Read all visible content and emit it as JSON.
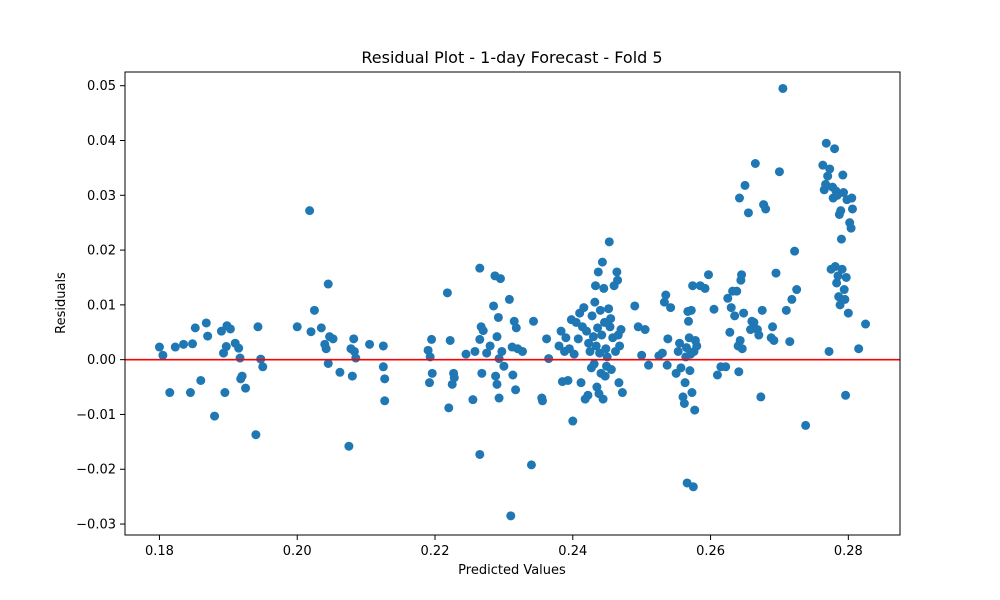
{
  "chart_data": {
    "type": "scatter",
    "title": "Residual Plot - 1-day Forecast - Fold 5",
    "xlabel": "Predicted Values",
    "ylabel": "Residuals",
    "xlim": [
      0.175,
      0.2875
    ],
    "ylim": [
      -0.032,
      0.0525
    ],
    "x_ticks": [
      0.18,
      0.2,
      0.22,
      0.24,
      0.26,
      0.28
    ],
    "x_tick_labels": [
      "0.18",
      "0.20",
      "0.22",
      "0.24",
      "0.26",
      "0.28"
    ],
    "y_ticks": [
      -0.03,
      -0.02,
      -0.01,
      0.0,
      0.01,
      0.02,
      0.03,
      0.04,
      0.05
    ],
    "y_tick_labels": [
      "−0.03",
      "−0.02",
      "−0.01",
      "0.00",
      "0.01",
      "0.02",
      "0.03",
      "0.04",
      "0.05"
    ],
    "grid": false,
    "reference_line": {
      "y": 0.0,
      "color": "#ff0000"
    },
    "marker_color": "#1f77b4",
    "points": [
      [
        0.18,
        0.0023
      ],
      [
        0.1805,
        0.0008
      ],
      [
        0.1815,
        -0.006
      ],
      [
        0.1823,
        0.0023
      ],
      [
        0.1835,
        0.0028
      ],
      [
        0.1845,
        -0.006
      ],
      [
        0.1848,
        0.0029
      ],
      [
        0.1852,
        0.0058
      ],
      [
        0.186,
        -0.0038
      ],
      [
        0.1868,
        0.0067
      ],
      [
        0.187,
        0.0043
      ],
      [
        0.188,
        -0.0103
      ],
      [
        0.189,
        0.0052
      ],
      [
        0.1893,
        0.0012
      ],
      [
        0.1895,
        -0.006
      ],
      [
        0.1897,
        0.0024
      ],
      [
        0.1898,
        0.0062
      ],
      [
        0.1903,
        0.0056
      ],
      [
        0.191,
        0.003
      ],
      [
        0.1915,
        0.0021
      ],
      [
        0.1917,
        0.0003
      ],
      [
        0.1918,
        -0.0035
      ],
      [
        0.192,
        -0.003
      ],
      [
        0.1925,
        -0.0052
      ],
      [
        0.194,
        -0.0137
      ],
      [
        0.1943,
        0.006
      ],
      [
        0.1947,
        0.0001
      ],
      [
        0.195,
        -0.0013
      ],
      [
        0.2,
        0.006
      ],
      [
        0.2018,
        0.0272
      ],
      [
        0.202,
        0.0051
      ],
      [
        0.2025,
        0.009
      ],
      [
        0.2035,
        0.0058
      ],
      [
        0.204,
        0.0028
      ],
      [
        0.2042,
        0.002
      ],
      [
        0.2045,
        0.0138
      ],
      [
        0.2045,
        -0.0007
      ],
      [
        0.2047,
        0.0042
      ],
      [
        0.2052,
        0.0038
      ],
      [
        0.2062,
        -0.0023
      ],
      [
        0.2075,
        -0.0158
      ],
      [
        0.2078,
        0.002
      ],
      [
        0.208,
        -0.003
      ],
      [
        0.2082,
        0.0038
      ],
      [
        0.2085,
        0.0003
      ],
      [
        0.2083,
        0.0015
      ],
      [
        0.2105,
        0.0028
      ],
      [
        0.2125,
        0.0025
      ],
      [
        0.2125,
        -0.0013
      ],
      [
        0.2127,
        -0.0035
      ],
      [
        0.2127,
        -0.0075
      ],
      [
        0.219,
        0.0017
      ],
      [
        0.2192,
        -0.0042
      ],
      [
        0.2195,
        0.0037
      ],
      [
        0.2196,
        -0.0025
      ],
      [
        0.2193,
        0.0005
      ],
      [
        0.2218,
        0.0122
      ],
      [
        0.222,
        -0.0088
      ],
      [
        0.2222,
        0.0035
      ],
      [
        0.2225,
        -0.0045
      ],
      [
        0.2227,
        -0.0025
      ],
      [
        0.2228,
        -0.0033
      ],
      [
        0.2245,
        0.001
      ],
      [
        0.2255,
        -0.0073
      ],
      [
        0.2258,
        0.0015
      ],
      [
        0.2265,
        0.0167
      ],
      [
        0.2265,
        -0.0173
      ],
      [
        0.2265,
        0.0037
      ],
      [
        0.2267,
        0.006
      ],
      [
        0.2268,
        -0.0025
      ],
      [
        0.227,
        0.0053
      ],
      [
        0.2275,
        0.0012
      ],
      [
        0.228,
        0.0025
      ],
      [
        0.2285,
        0.0098
      ],
      [
        0.2287,
        0.0153
      ],
      [
        0.2288,
        -0.003
      ],
      [
        0.229,
        -0.0045
      ],
      [
        0.229,
        0.0042
      ],
      [
        0.2292,
        0.0077
      ],
      [
        0.2293,
        -0.007
      ],
      [
        0.2293,
        0.0002
      ],
      [
        0.2295,
        0.0148
      ],
      [
        0.2297,
        0.0015
      ],
      [
        0.23,
        -0.0012
      ],
      [
        0.2308,
        0.011
      ],
      [
        0.231,
        -0.0285
      ],
      [
        0.2312,
        0.0023
      ],
      [
        0.2313,
        -0.0028
      ],
      [
        0.2315,
        0.007
      ],
      [
        0.2317,
        -0.0055
      ],
      [
        0.2318,
        0.0058
      ],
      [
        0.232,
        0.002
      ],
      [
        0.2327,
        0.0015
      ],
      [
        0.234,
        -0.0192
      ],
      [
        0.2343,
        0.007
      ],
      [
        0.2355,
        -0.007
      ],
      [
        0.2356,
        -0.0075
      ],
      [
        0.2362,
        0.0038
      ],
      [
        0.2365,
        0.0002
      ],
      [
        0.238,
        0.0025
      ],
      [
        0.2383,
        0.0052
      ],
      [
        0.2385,
        -0.004
      ],
      [
        0.2388,
        0.0015
      ],
      [
        0.239,
        0.004
      ],
      [
        0.2393,
        -0.0038
      ],
      [
        0.2395,
        0.002
      ],
      [
        0.2398,
        0.0073
      ],
      [
        0.24,
        -0.0112
      ],
      [
        0.2402,
        0.001
      ],
      [
        0.2405,
        0.0068
      ],
      [
        0.2408,
        0.0038
      ],
      [
        0.241,
        0.0085
      ],
      [
        0.2412,
        -0.0042
      ],
      [
        0.2414,
        0.006
      ],
      [
        0.2416,
        0.0095
      ],
      [
        0.2418,
        -0.0072
      ],
      [
        0.242,
        0.0052
      ],
      [
        0.2422,
        -0.0065
      ],
      [
        0.2423,
        0.003
      ],
      [
        0.2425,
        0.0015
      ],
      [
        0.2427,
        -0.0015
      ],
      [
        0.2428,
        0.008
      ],
      [
        0.243,
        0.0042
      ],
      [
        0.2431,
        -0.0008
      ],
      [
        0.2432,
        0.0105
      ],
      [
        0.2433,
        0.0135
      ],
      [
        0.2434,
        0.0025
      ],
      [
        0.2435,
        -0.005
      ],
      [
        0.2436,
        0.0058
      ],
      [
        0.2437,
        0.016
      ],
      [
        0.2438,
        -0.0062
      ],
      [
        0.2439,
        0.0012
      ],
      [
        0.244,
        0.009
      ],
      [
        0.2441,
        -0.0025
      ],
      [
        0.2442,
        0.0045
      ],
      [
        0.2443,
        0.0178
      ],
      [
        0.2444,
        -0.0072
      ],
      [
        0.2445,
        0.013
      ],
      [
        0.2446,
        0.0068
      ],
      [
        0.2447,
        -0.003
      ],
      [
        0.2448,
        0.002
      ],
      [
        0.2449,
        -0.0012
      ],
      [
        0.245,
        0.0005
      ],
      [
        0.2452,
        0.0093
      ],
      [
        0.2453,
        0.0215
      ],
      [
        0.2454,
        0.006
      ],
      [
        0.2455,
        0.0075
      ],
      [
        0.2456,
        -0.0018
      ],
      [
        0.2458,
        0.004
      ],
      [
        0.246,
        0.0135
      ],
      [
        0.2462,
        0.0015
      ],
      [
        0.2464,
        0.016
      ],
      [
        0.2465,
        0.0145
      ],
      [
        0.2466,
        0.0045
      ],
      [
        0.2467,
        -0.0042
      ],
      [
        0.2468,
        0.0025
      ],
      [
        0.247,
        0.0055
      ],
      [
        0.2472,
        -0.006
      ],
      [
        0.249,
        0.0098
      ],
      [
        0.2495,
        0.006
      ],
      [
        0.25,
        0.0008
      ],
      [
        0.2505,
        0.0055
      ],
      [
        0.251,
        -0.001
      ],
      [
        0.2525,
        0.0007
      ],
      [
        0.253,
        0.0012
      ],
      [
        0.2533,
        0.0105
      ],
      [
        0.2535,
        0.0118
      ],
      [
        0.2537,
        -0.001
      ],
      [
        0.2538,
        0.0038
      ],
      [
        0.2542,
        0.0095
      ],
      [
        0.255,
        -0.0025
      ],
      [
        0.2553,
        0.0015
      ],
      [
        0.2555,
        0.003
      ],
      [
        0.2557,
        -0.0015
      ],
      [
        0.256,
        -0.0068
      ],
      [
        0.2562,
        -0.008
      ],
      [
        0.2563,
        -0.0042
      ],
      [
        0.2564,
        0.0005
      ],
      [
        0.2565,
        0.0022
      ],
      [
        0.2566,
        -0.0225
      ],
      [
        0.2567,
        0.0088
      ],
      [
        0.2568,
        0.007
      ],
      [
        0.2569,
        0.004
      ],
      [
        0.257,
        -0.002
      ],
      [
        0.2571,
        0.001
      ],
      [
        0.2572,
        0.009
      ],
      [
        0.2573,
        -0.006
      ],
      [
        0.2574,
        0.0135
      ],
      [
        0.2575,
        -0.0232
      ],
      [
        0.2576,
        0.0015
      ],
      [
        0.2577,
        -0.0092
      ],
      [
        0.2578,
        0.0035
      ],
      [
        0.258,
        0.0025
      ],
      [
        0.2585,
        0.0135
      ],
      [
        0.2592,
        0.013
      ],
      [
        0.2597,
        0.0155
      ],
      [
        0.2605,
        0.0092
      ],
      [
        0.261,
        -0.0028
      ],
      [
        0.2615,
        -0.0013
      ],
      [
        0.2622,
        -0.0013
      ],
      [
        0.2625,
        0.0112
      ],
      [
        0.2628,
        0.005
      ],
      [
        0.263,
        0.0095
      ],
      [
        0.2632,
        0.0125
      ],
      [
        0.2635,
        0.008
      ],
      [
        0.2638,
        0.0125
      ],
      [
        0.264,
        0.0025
      ],
      [
        0.2641,
        -0.0022
      ],
      [
        0.2642,
        0.0295
      ],
      [
        0.2643,
        0.0035
      ],
      [
        0.2644,
        0.0145
      ],
      [
        0.2645,
        0.0155
      ],
      [
        0.2646,
        0.002
      ],
      [
        0.2648,
        0.0085
      ],
      [
        0.265,
        0.0318
      ],
      [
        0.2655,
        0.0268
      ],
      [
        0.2658,
        0.0055
      ],
      [
        0.266,
        0.007
      ],
      [
        0.2663,
        0.0068
      ],
      [
        0.2665,
        0.0358
      ],
      [
        0.2668,
        0.0055
      ],
      [
        0.267,
        0.0045
      ],
      [
        0.2673,
        -0.0068
      ],
      [
        0.2675,
        0.009
      ],
      [
        0.2677,
        0.0283
      ],
      [
        0.268,
        0.0275
      ],
      [
        0.2688,
        0.004
      ],
      [
        0.269,
        0.006
      ],
      [
        0.2692,
        0.0035
      ],
      [
        0.2695,
        0.0158
      ],
      [
        0.27,
        0.0343
      ],
      [
        0.2705,
        0.0495
      ],
      [
        0.271,
        0.009
      ],
      [
        0.2715,
        0.0033
      ],
      [
        0.2718,
        0.011
      ],
      [
        0.2722,
        0.0198
      ],
      [
        0.2725,
        0.0128
      ],
      [
        0.2738,
        -0.012
      ],
      [
        0.2763,
        0.0355
      ],
      [
        0.2765,
        0.031
      ],
      [
        0.2767,
        0.032
      ],
      [
        0.2768,
        0.0395
      ],
      [
        0.277,
        0.0335
      ],
      [
        0.2772,
        0.0015
      ],
      [
        0.2773,
        0.0348
      ],
      [
        0.2775,
        0.0165
      ],
      [
        0.2777,
        0.0315
      ],
      [
        0.2778,
        0.0295
      ],
      [
        0.278,
        0.0385
      ],
      [
        0.2781,
        0.017
      ],
      [
        0.2782,
        0.0308
      ],
      [
        0.2783,
        0.014
      ],
      [
        0.2784,
        0.03
      ],
      [
        0.2785,
        0.0153
      ],
      [
        0.2786,
        0.0115
      ],
      [
        0.2787,
        0.0265
      ],
      [
        0.2788,
        0.01
      ],
      [
        0.2789,
        0.0272
      ],
      [
        0.279,
        0.022
      ],
      [
        0.2791,
        0.0165
      ],
      [
        0.2792,
        0.0337
      ],
      [
        0.2793,
        0.0305
      ],
      [
        0.2794,
        0.0128
      ],
      [
        0.2795,
        0.011
      ],
      [
        0.2796,
        -0.0065
      ],
      [
        0.2797,
        0.015
      ],
      [
        0.2798,
        0.0292
      ],
      [
        0.28,
        0.0085
      ],
      [
        0.2802,
        0.025
      ],
      [
        0.2804,
        0.024
      ],
      [
        0.2805,
        0.0295
      ],
      [
        0.2806,
        0.0275
      ],
      [
        0.2815,
        0.002
      ],
      [
        0.2825,
        0.0065
      ]
    ]
  }
}
